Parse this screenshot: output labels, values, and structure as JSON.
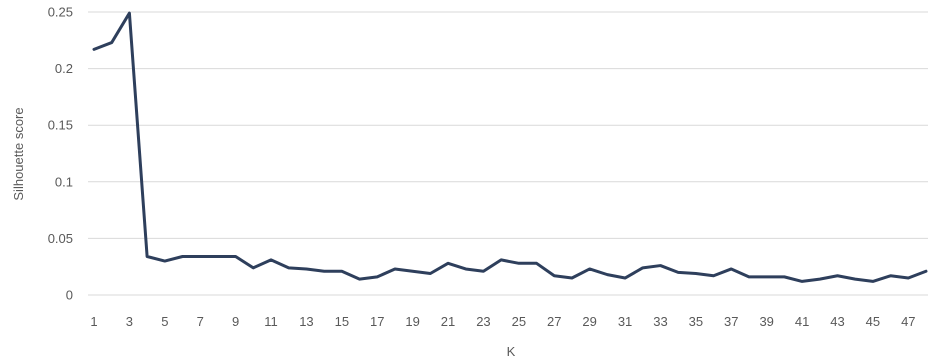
{
  "chart_data": {
    "type": "line",
    "xlabel": "K",
    "ylabel": "Silhouette score",
    "ylim": [
      0,
      0.25
    ],
    "yticks": [
      "0",
      "0.05",
      "0.1",
      "0.15",
      "0.2",
      "0.25"
    ],
    "xtick_labels": [
      "1",
      "3",
      "5",
      "7",
      "9",
      "11",
      "13",
      "15",
      "17",
      "19",
      "21",
      "23",
      "25",
      "27",
      "29",
      "31",
      "33",
      "35",
      "37",
      "39",
      "41",
      "43",
      "45",
      "47"
    ],
    "grid": "horizontal",
    "colors": {
      "series": "#2e3f5c",
      "grid": "#d9d9d9",
      "text": "#595959"
    },
    "x": [
      1,
      2,
      3,
      4,
      5,
      6,
      7,
      8,
      9,
      10,
      11,
      12,
      13,
      14,
      15,
      16,
      17,
      18,
      19,
      20,
      21,
      22,
      23,
      24,
      25,
      26,
      27,
      28,
      29,
      30,
      31,
      32,
      33,
      34,
      35,
      36,
      37,
      38,
      39,
      40,
      41,
      42,
      43,
      44,
      45,
      46,
      47,
      48
    ],
    "series": [
      {
        "values": [
          0.217,
          0.223,
          0.249,
          0.034,
          0.03,
          0.034,
          0.034,
          0.034,
          0.034,
          0.024,
          0.031,
          0.024,
          0.023,
          0.021,
          0.021,
          0.014,
          0.016,
          0.023,
          0.021,
          0.019,
          0.028,
          0.023,
          0.021,
          0.031,
          0.028,
          0.028,
          0.017,
          0.015,
          0.023,
          0.018,
          0.015,
          0.024,
          0.026,
          0.02,
          0.019,
          0.017,
          0.023,
          0.016,
          0.016,
          0.016,
          0.012,
          0.014,
          0.017,
          0.014,
          0.012,
          0.017,
          0.015,
          0.021
        ]
      }
    ]
  }
}
